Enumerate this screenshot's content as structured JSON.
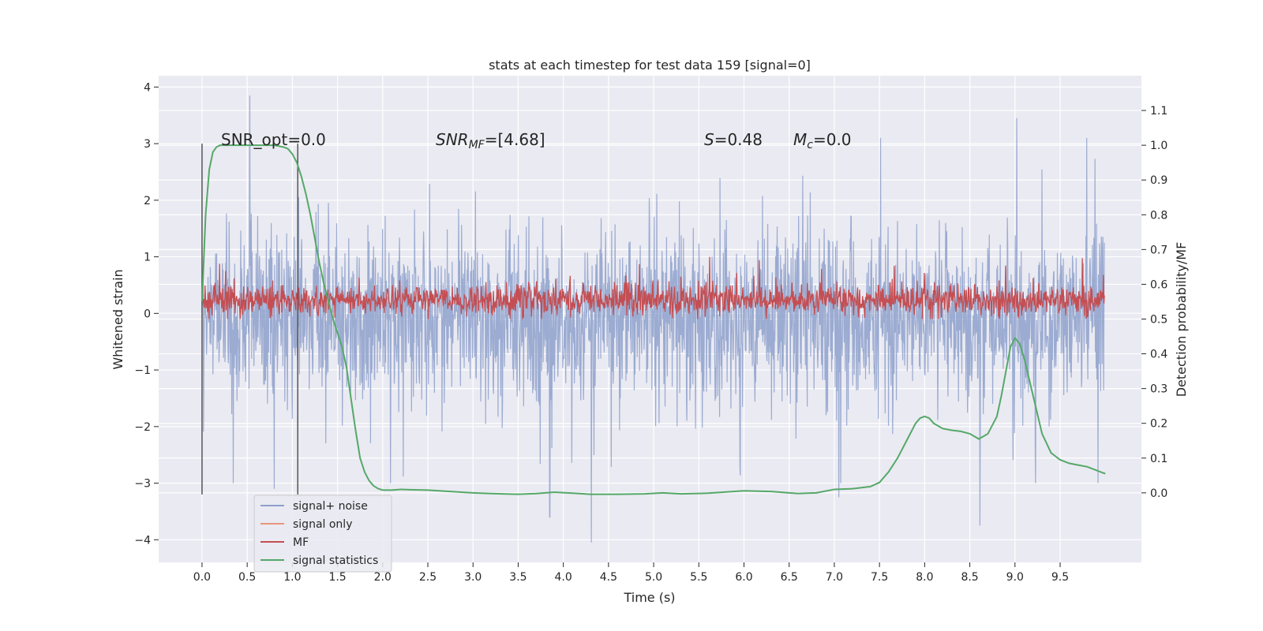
{
  "chart_data": {
    "type": "line",
    "title": "stats at each timestep for test data 159 [signal=0]",
    "xlabel": "Time (s)",
    "ylabel": "Whitened strain",
    "y2label": "Detection probability/MF",
    "xlim": [
      -0.48,
      10.4
    ],
    "ylim": [
      -4.4,
      4.2
    ],
    "y2lim": [
      -0.2,
      1.2
    ],
    "xticks": [
      0.0,
      0.5,
      1.0,
      1.5,
      2.0,
      2.5,
      3.0,
      3.5,
      4.0,
      4.5,
      5.0,
      5.5,
      6.0,
      6.5,
      7.0,
      7.5,
      8.0,
      8.5,
      9.0,
      9.5
    ],
    "xtick_labels": [
      "0.0",
      "0.5",
      "1.0",
      "1.5",
      "2.0",
      "2.5",
      "3.0",
      "3.5",
      "4.0",
      "4.5",
      "5.0",
      "5.5",
      "6.0",
      "6.5",
      "7.0",
      "7.5",
      "8.0",
      "8.5",
      "9.0",
      "9.5"
    ],
    "yticks": [
      -4,
      -3,
      -2,
      -1,
      0,
      1,
      2,
      3,
      4
    ],
    "ytick_labels": [
      "−4",
      "−3",
      "−2",
      "−1",
      "0",
      "1",
      "2",
      "3",
      "4"
    ],
    "y2ticks": [
      0.0,
      0.1,
      0.2,
      0.3,
      0.4,
      0.5,
      0.6,
      0.7,
      0.8,
      0.9,
      1.0,
      1.1
    ],
    "y2tick_labels": [
      "0.0",
      "0.1",
      "0.2",
      "0.3",
      "0.4",
      "0.5",
      "0.6",
      "0.7",
      "0.8",
      "0.9",
      "1.0",
      "1.1"
    ],
    "grid": true,
    "legend_position": "lower-left",
    "annotations": {
      "snr_opt": "SNR_opt=0.0",
      "snr_mf_prefix": "SNR",
      "snr_mf_sub": "MF",
      "snr_mf_value": "=[4.68]",
      "s_prefix": "S",
      "s_value": "=0.48",
      "mc_prefix": "M",
      "mc_sub": "c",
      "mc_value": "=0.0"
    },
    "vlines_x": [
      0.0,
      1.06
    ],
    "vlines_y": [
      -3.2,
      3.0
    ],
    "series": [
      {
        "name": "signal+ noise",
        "color": "#8da0cb",
        "axis": "left",
        "x_range": [
          0.0,
          9.99
        ],
        "envelope": {
          "core_low": -1.35,
          "core_high": 1.15,
          "max_peak": 3.85,
          "min_peak": -4.05
        },
        "notable_peaks": [
          [
            0.53,
            3.85
          ],
          [
            9.02,
            3.45
          ],
          [
            4.31,
            -4.05
          ],
          [
            8.61,
            -3.75
          ],
          [
            3.85,
            -3.6
          ],
          [
            7.05,
            -3.25
          ],
          [
            0.8,
            -3.1
          ]
        ]
      },
      {
        "name": "signal only",
        "color": "#e9967a",
        "axis": "left",
        "x": [],
        "y": []
      },
      {
        "name": "MF",
        "color": "#c44e52",
        "axis": "right",
        "x_range": [
          0.0,
          9.99
        ],
        "level_range": [
          0.5,
          0.62
        ],
        "max_peak": 0.68
      },
      {
        "name": "signal statistics",
        "color": "#55a868",
        "axis": "right",
        "x": [
          0.0,
          0.04,
          0.08,
          0.12,
          0.16,
          0.2,
          0.3,
          0.4,
          0.5,
          0.6,
          0.7,
          0.8,
          0.9,
          0.95,
          1.0,
          1.05,
          1.1,
          1.15,
          1.2,
          1.25,
          1.3,
          1.35,
          1.4,
          1.45,
          1.5,
          1.55,
          1.6,
          1.65,
          1.7,
          1.75,
          1.8,
          1.85,
          1.9,
          1.95,
          2.0,
          2.1,
          2.2,
          2.3,
          2.5,
          2.8,
          3.0,
          3.2,
          3.5,
          3.7,
          3.9,
          4.1,
          4.3,
          4.6,
          4.9,
          5.1,
          5.3,
          5.6,
          6.0,
          6.3,
          6.6,
          6.8,
          7.0,
          7.2,
          7.4,
          7.5,
          7.6,
          7.7,
          7.8,
          7.9,
          7.95,
          8.0,
          8.05,
          8.1,
          8.2,
          8.3,
          8.4,
          8.5,
          8.6,
          8.7,
          8.8,
          8.85,
          8.9,
          8.95,
          9.0,
          9.05,
          9.1,
          9.2,
          9.3,
          9.4,
          9.5,
          9.6,
          9.7,
          9.8,
          9.9,
          10.0
        ],
        "y": [
          0.55,
          0.8,
          0.93,
          0.98,
          0.995,
          1.0,
          1.0,
          1.0,
          1.0,
          1.0,
          1.0,
          1.0,
          0.995,
          0.99,
          0.975,
          0.95,
          0.91,
          0.86,
          0.8,
          0.73,
          0.66,
          0.6,
          0.55,
          0.5,
          0.46,
          0.42,
          0.36,
          0.27,
          0.18,
          0.1,
          0.06,
          0.035,
          0.02,
          0.012,
          0.008,
          0.008,
          0.01,
          0.009,
          0.008,
          0.003,
          0.0,
          -0.002,
          -0.004,
          -0.002,
          0.002,
          -0.001,
          -0.004,
          -0.004,
          -0.003,
          0.0,
          -0.003,
          -0.001,
          0.006,
          0.004,
          -0.002,
          0.0,
          0.01,
          0.012,
          0.018,
          0.03,
          0.06,
          0.1,
          0.15,
          0.2,
          0.215,
          0.22,
          0.215,
          0.2,
          0.185,
          0.18,
          0.177,
          0.17,
          0.155,
          0.17,
          0.22,
          0.28,
          0.35,
          0.42,
          0.445,
          0.43,
          0.39,
          0.28,
          0.17,
          0.115,
          0.095,
          0.085,
          0.08,
          0.075,
          0.065,
          0.055
        ]
      }
    ]
  }
}
